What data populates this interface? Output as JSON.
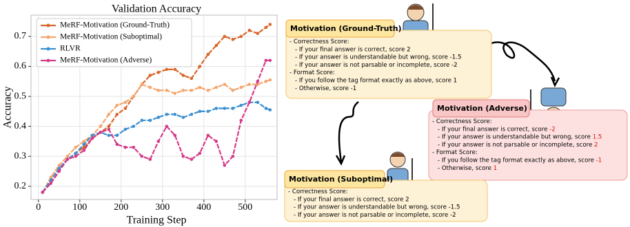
{
  "chart_data": {
    "type": "line",
    "title": "Validation Accuracy",
    "xlabel": "Training Step",
    "ylabel": "Accuracy",
    "x": [
      10,
      30,
      50,
      70,
      90,
      110,
      130,
      150,
      170,
      190,
      210,
      230,
      250,
      270,
      290,
      310,
      330,
      350,
      370,
      390,
      410,
      430,
      450,
      470,
      490,
      510,
      530,
      550,
      560
    ],
    "series": [
      {
        "name": "MeRF-Motivation (Ground-Truth)",
        "color": "#d9662b",
        "values": [
          0.18,
          0.22,
          0.26,
          0.29,
          0.31,
          0.33,
          0.36,
          0.38,
          0.4,
          0.44,
          0.46,
          0.5,
          0.54,
          0.57,
          0.58,
          0.59,
          0.59,
          0.57,
          0.56,
          0.6,
          0.64,
          0.67,
          0.7,
          0.69,
          0.7,
          0.72,
          0.71,
          0.73,
          0.74
        ]
      },
      {
        "name": "MeRF-Motivation (Suboptimal)",
        "color": "#f4a56b",
        "values": [
          0.18,
          0.23,
          0.27,
          0.3,
          0.33,
          0.35,
          0.37,
          0.4,
          0.44,
          0.47,
          0.48,
          0.5,
          0.54,
          0.53,
          0.52,
          0.52,
          0.51,
          0.52,
          0.52,
          0.53,
          0.52,
          0.53,
          0.54,
          0.52,
          0.53,
          0.54,
          0.54,
          0.55,
          0.555
        ]
      },
      {
        "name": "RLVR",
        "color": "#3b8fd0",
        "values": [
          0.18,
          0.22,
          0.26,
          0.29,
          0.31,
          0.34,
          0.37,
          0.38,
          0.37,
          0.37,
          0.39,
          0.4,
          0.42,
          0.42,
          0.43,
          0.44,
          0.44,
          0.43,
          0.44,
          0.45,
          0.45,
          0.46,
          0.46,
          0.46,
          0.47,
          0.48,
          0.48,
          0.46,
          0.455
        ]
      },
      {
        "name": "MeRF-Motivation (Adverse)",
        "color": "#d63a8a",
        "values": [
          0.18,
          0.21,
          0.25,
          0.29,
          0.3,
          0.32,
          0.36,
          0.38,
          0.39,
          0.34,
          0.33,
          0.33,
          0.3,
          0.29,
          0.35,
          0.4,
          0.37,
          0.3,
          0.29,
          0.31,
          0.37,
          0.35,
          0.27,
          0.3,
          0.42,
          0.48,
          0.55,
          0.62,
          0.62
        ]
      }
    ],
    "xlim": [
      -18,
      577
    ],
    "ylim": [
      0.156,
      0.771
    ],
    "xticks": [
      0,
      100,
      200,
      300,
      400,
      500
    ],
    "yticks": [
      {
        "value": 0.2,
        "label": "0.2"
      },
      {
        "value": 0.3,
        "label": "0.3"
      },
      {
        "value": 0.4,
        "label": "0.4"
      },
      {
        "value": 0.5,
        "label": "0.5"
      },
      {
        "value": 0.6,
        "label": "0.6"
      },
      {
        "value": 0.7,
        "label": "0.7"
      }
    ],
    "grid": true,
    "legend": "upper left"
  },
  "diagram": {
    "boxes": [
      {
        "title": "Motivation (Ground-Truth)",
        "lines": [
          {
            "text": "- Correctness Score:"
          },
          {
            "text": "- If your final answer is correct, score 2"
          },
          {
            "text": "- If your answer is understandable but wrong, score -1.5"
          },
          {
            "text": "- If your answer is not parsable or incomplete, score -2"
          },
          {
            "text": "- Format Score:"
          },
          {
            "text": "- If you follow the tag format exactly as above, score 1"
          },
          {
            "text": "- Otherwise, score -1"
          }
        ]
      },
      {
        "title": "Motivation (Adverse)",
        "lines": [
          {
            "text": "- Correctness Score:"
          },
          {
            "text": "- If your final answer is correct, score ",
            "score": "-2"
          },
          {
            "text": "- If your answer is understandable but wrong, score ",
            "score": "1.5"
          },
          {
            "text": "- If your answer is not parsable or incomplete, score ",
            "score": "2"
          },
          {
            "text": "- Format Score:"
          },
          {
            "text": "- If you follow the tag format exactly as above, score ",
            "score": "-1"
          },
          {
            "text": "- Otherwise, score ",
            "score": "1"
          }
        ]
      },
      {
        "title": "Motivation (Suboptimal)",
        "lines": [
          {
            "text": "- Correctness Score:"
          },
          {
            "text": "- If your final answer is correct, score 2"
          },
          {
            "text": "- If your answer is understandable but wrong, score -1.5"
          },
          {
            "text": "- If your answer is not parsable or incomplete, score -2"
          }
        ]
      }
    ]
  }
}
